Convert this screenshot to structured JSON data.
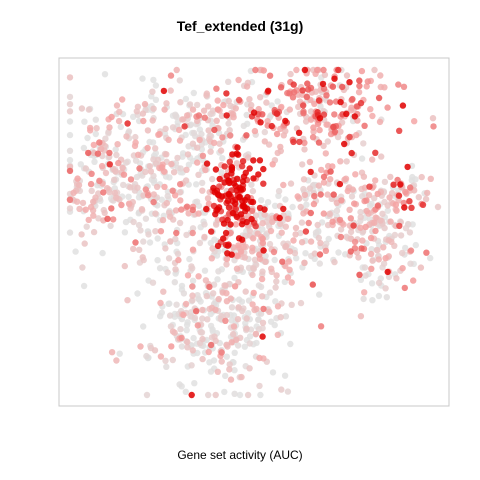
{
  "chart_data": {
    "type": "scatter",
    "title": "Tef_extended (31g)",
    "xlabel": "Gene set activity (AUC)",
    "ylabel": "",
    "grid": false,
    "legend": "none",
    "colors": {
      "low": "#e0e0e0",
      "mid": "#f4a6a6",
      "high": "#e00000",
      "frame": "#c8c8c8"
    },
    "clusters": [
      {
        "name": "upper-left",
        "cx": 0.22,
        "cy": 0.68,
        "sx": 0.12,
        "sy": 0.13,
        "n": 420,
        "activity_mean": 0.12
      },
      {
        "name": "left-edge",
        "cx": 0.08,
        "cy": 0.63,
        "sx": 0.05,
        "sy": 0.06,
        "n": 40,
        "activity_mean": 0.28
      },
      {
        "name": "top-right",
        "cx": 0.66,
        "cy": 0.88,
        "sx": 0.11,
        "sy": 0.07,
        "n": 260,
        "activity_mean": 0.38
      },
      {
        "name": "center-hot",
        "cx": 0.45,
        "cy": 0.6,
        "sx": 0.03,
        "sy": 0.07,
        "n": 130,
        "activity_mean": 0.85
      },
      {
        "name": "center-mid",
        "cx": 0.51,
        "cy": 0.48,
        "sx": 0.08,
        "sy": 0.07,
        "n": 220,
        "activity_mean": 0.15
      },
      {
        "name": "right-mid",
        "cx": 0.73,
        "cy": 0.59,
        "sx": 0.08,
        "sy": 0.08,
        "n": 170,
        "activity_mean": 0.25
      },
      {
        "name": "far-right",
        "cx": 0.85,
        "cy": 0.48,
        "sx": 0.05,
        "sy": 0.1,
        "n": 120,
        "activity_mean": 0.15
      },
      {
        "name": "far-right-top",
        "cx": 0.9,
        "cy": 0.62,
        "sx": 0.05,
        "sy": 0.03,
        "n": 40,
        "activity_mean": 0.35
      },
      {
        "name": "bottom",
        "cx": 0.4,
        "cy": 0.22,
        "sx": 0.1,
        "sy": 0.1,
        "n": 320,
        "activity_mean": 0.07
      },
      {
        "name": "top-center-left",
        "cx": 0.36,
        "cy": 0.84,
        "sx": 0.06,
        "sy": 0.05,
        "n": 80,
        "activity_mean": 0.15
      }
    ]
  }
}
